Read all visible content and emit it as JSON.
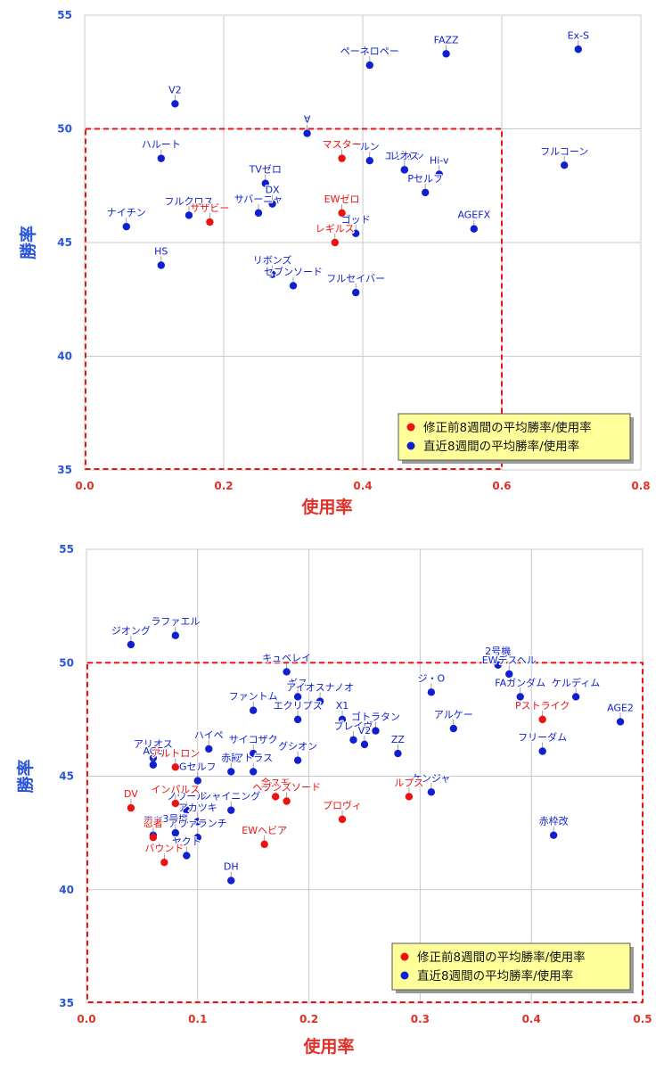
{
  "chart_data": [
    {
      "type": "scatter",
      "xlabel": "使用率",
      "ylabel": "勝率",
      "xlim": [
        0,
        0.8
      ],
      "ylim": [
        35,
        55
      ],
      "xticks": [
        "0.0",
        "0.2",
        "0.4",
        "0.6",
        "0.8"
      ],
      "yticks": [
        "35",
        "40",
        "45",
        "50",
        "55"
      ],
      "grid": true,
      "legend_position": "bottom-right",
      "colors": {
        "before": "#ee1111",
        "recent": "#1020d0",
        "threshold_box": "#e81515",
        "legend_bg": "#ffff99"
      },
      "threshold": {
        "x_max": 0.6,
        "y_min": 35,
        "y_max": 50
      },
      "series": [
        {
          "name": "修正前8週間の平均勝率/使用率",
          "color": "#ee1111",
          "points": [
            {
              "x": 0.18,
              "y": 45.9,
              "label": "サザビー"
            },
            {
              "x": 0.37,
              "y": 48.7,
              "label": "マスター"
            },
            {
              "x": 0.37,
              "y": 46.3,
              "label": "EWゼロ"
            },
            {
              "x": 0.36,
              "y": 45.0,
              "label": "レギルス"
            }
          ]
        },
        {
          "name": "直近8週間の平均勝率/使用率",
          "color": "#1020d0",
          "points": [
            {
              "x": 0.71,
              "y": 53.5,
              "label": "Ex-S"
            },
            {
              "x": 0.52,
              "y": 53.3,
              "label": "FAZZ"
            },
            {
              "x": 0.41,
              "y": 52.8,
              "label": "ペーネロペー"
            },
            {
              "x": 0.13,
              "y": 51.1,
              "label": "V2"
            },
            {
              "x": 0.32,
              "y": 49.8,
              "label": "∀"
            },
            {
              "x": 0.11,
              "y": 48.7,
              "label": "ハルート"
            },
            {
              "x": 0.41,
              "y": 48.6,
              "label": "ルン"
            },
            {
              "x": 0.69,
              "y": 48.4,
              "label": "フルコーン"
            },
            {
              "x": 0.46,
              "y": 48.2,
              "label": "エピオン"
            },
            {
              "x": 0.46,
              "y": 48.2,
              "label": "レオス"
            },
            {
              "x": 0.51,
              "y": 48.0,
              "label": "Hi-v"
            },
            {
              "x": 0.26,
              "y": 47.6,
              "label": "TVゼロ"
            },
            {
              "x": 0.49,
              "y": 47.2,
              "label": "Pセルフ"
            },
            {
              "x": 0.27,
              "y": 46.7,
              "label": "DX"
            },
            {
              "x": 0.25,
              "y": 46.3,
              "label": "サバーニャ"
            },
            {
              "x": 0.15,
              "y": 46.2,
              "label": "フルクロス"
            },
            {
              "x": 0.06,
              "y": 45.7,
              "label": "ナイチン"
            },
            {
              "x": 0.56,
              "y": 45.6,
              "label": "AGEFX"
            },
            {
              "x": 0.39,
              "y": 45.4,
              "label": "ゴッド"
            },
            {
              "x": 0.11,
              "y": 44.0,
              "label": "HS"
            },
            {
              "x": 0.27,
              "y": 43.6,
              "label": "リボンズ"
            },
            {
              "x": 0.3,
              "y": 43.1,
              "label": "セブンソード"
            },
            {
              "x": 0.39,
              "y": 42.8,
              "label": "フルセイバー"
            }
          ]
        }
      ]
    },
    {
      "type": "scatter",
      "xlabel": "使用率",
      "ylabel": "勝率",
      "xlim": [
        0,
        0.5
      ],
      "ylim": [
        35,
        55
      ],
      "xticks": [
        "0.0",
        "0.1",
        "0.2",
        "0.3",
        "0.4",
        "0.5"
      ],
      "yticks": [
        "35",
        "40",
        "45",
        "50",
        "55"
      ],
      "grid": true,
      "legend_position": "bottom-right",
      "colors": {
        "before": "#ee1111",
        "recent": "#1020d0",
        "threshold_box": "#e81515",
        "legend_bg": "#ffff99"
      },
      "threshold": {
        "x_max": 0.5,
        "y_min": 35,
        "y_max": 50
      },
      "series": [
        {
          "name": "修正前8週間の平均勝率/使用率",
          "color": "#ee1111",
          "points": [
            {
              "x": 0.41,
              "y": 47.5,
              "label": "Pストライク"
            },
            {
              "x": 0.08,
              "y": 45.4,
              "label": "アルトロン"
            },
            {
              "x": 0.04,
              "y": 43.6,
              "label": "DV"
            },
            {
              "x": 0.08,
              "y": 43.8,
              "label": "インパルス"
            },
            {
              "x": 0.17,
              "y": 44.1,
              "label": "金スモ"
            },
            {
              "x": 0.18,
              "y": 43.9,
              "label": "ヘブンズソード"
            },
            {
              "x": 0.29,
              "y": 44.1,
              "label": "ルプス"
            },
            {
              "x": 0.23,
              "y": 43.1,
              "label": "プロヴィ"
            },
            {
              "x": 0.06,
              "y": 42.3,
              "label": "忍者"
            },
            {
              "x": 0.16,
              "y": 42.0,
              "label": "EWヘビア"
            },
            {
              "x": 0.07,
              "y": 41.2,
              "label": "バウンド"
            }
          ]
        },
        {
          "name": "直近8週間の平均勝率/使用率",
          "color": "#1020d0",
          "points": [
            {
              "x": 0.08,
              "y": 51.2,
              "label": "ラファエル"
            },
            {
              "x": 0.04,
              "y": 50.8,
              "label": "ジオング"
            },
            {
              "x": 0.18,
              "y": 49.6,
              "label": "キュベレイ"
            },
            {
              "x": 0.37,
              "y": 49.9,
              "label": "2号機"
            },
            {
              "x": 0.38,
              "y": 49.5,
              "label": "EWデスヘル"
            },
            {
              "x": 0.31,
              "y": 48.7,
              "label": "ジ・O"
            },
            {
              "x": 0.19,
              "y": 48.5,
              "label": "ギス"
            },
            {
              "x": 0.21,
              "y": 48.3,
              "label": "アイオスナノオ"
            },
            {
              "x": 0.39,
              "y": 48.5,
              "label": "FAガンダム"
            },
            {
              "x": 0.44,
              "y": 48.5,
              "label": "ケルディム"
            },
            {
              "x": 0.15,
              "y": 47.9,
              "label": "ファントム"
            },
            {
              "x": 0.19,
              "y": 47.5,
              "label": "エクリプス"
            },
            {
              "x": 0.23,
              "y": 47.5,
              "label": "X1"
            },
            {
              "x": 0.48,
              "y": 47.4,
              "label": "AGE2"
            },
            {
              "x": 0.33,
              "y": 47.1,
              "label": "アルケー"
            },
            {
              "x": 0.26,
              "y": 47.0,
              "label": "ゴトラタン"
            },
            {
              "x": 0.24,
              "y": 46.6,
              "label": "ブレイヴ"
            },
            {
              "x": 0.25,
              "y": 46.4,
              "label": "V2"
            },
            {
              "x": 0.41,
              "y": 46.1,
              "label": "フリーダム"
            },
            {
              "x": 0.11,
              "y": 46.2,
              "label": "ハイペ"
            },
            {
              "x": 0.06,
              "y": 45.8,
              "label": "アリオス"
            },
            {
              "x": 0.06,
              "y": 45.5,
              "label": "AGE"
            },
            {
              "x": 0.15,
              "y": 46.0,
              "label": "サイコザク"
            },
            {
              "x": 0.28,
              "y": 46.0,
              "label": "ZZ"
            },
            {
              "x": 0.19,
              "y": 45.7,
              "label": "グシオン"
            },
            {
              "x": 0.13,
              "y": 45.2,
              "label": "赤龍"
            },
            {
              "x": 0.15,
              "y": 45.2,
              "label": "アトラス"
            },
            {
              "x": 0.1,
              "y": 44.8,
              "label": "Gセルフ"
            },
            {
              "x": 0.31,
              "y": 44.3,
              "label": "ケンジャ"
            },
            {
              "x": 0.13,
              "y": 43.5,
              "label": "シャイニング"
            },
            {
              "x": 0.09,
              "y": 43.5,
              "label": "ノワール"
            },
            {
              "x": 0.1,
              "y": 43.0,
              "label": "アカツキ"
            },
            {
              "x": 0.08,
              "y": 42.5,
              "label": "3号機"
            },
            {
              "x": 0.1,
              "y": 42.3,
              "label": "アヴァランチ"
            },
            {
              "x": 0.06,
              "y": 42.4,
              "label": "忍者"
            },
            {
              "x": 0.42,
              "y": 42.4,
              "label": "赤枠改"
            },
            {
              "x": 0.09,
              "y": 41.5,
              "label": "ヤクト"
            },
            {
              "x": 0.13,
              "y": 40.4,
              "label": "DH"
            }
          ]
        }
      ]
    }
  ]
}
